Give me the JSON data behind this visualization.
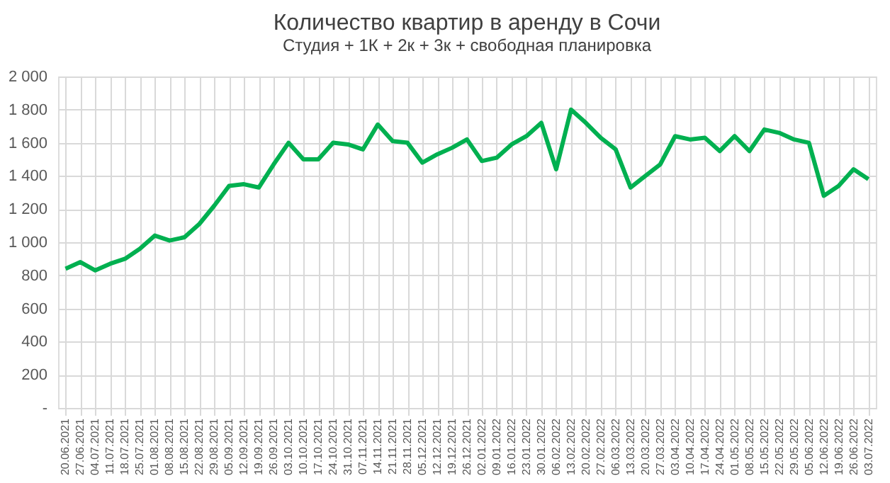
{
  "chart_data": {
    "type": "line",
    "title": "Количество квартир в аренду в Сочи",
    "subtitle": "Студия + 1К + 2к + 3к + свободная планировка",
    "categories": [
      "20.06.2021",
      "27.06.2021",
      "04.07.2021",
      "11.07.2021",
      "18.07.2021",
      "25.07.2021",
      "01.08.2021",
      "08.08.2021",
      "15.08.2021",
      "22.08.2021",
      "29.08.2021",
      "05.09.2021",
      "12.09.2021",
      "19.09.2021",
      "26.09.2021",
      "03.10.2021",
      "10.10.2021",
      "17.10.2021",
      "24.10.2021",
      "31.10.2021",
      "07.11.2021",
      "14.11.2021",
      "21.11.2021",
      "28.11.2021",
      "05.12.2021",
      "12.12.2021",
      "19.12.2021",
      "26.12.2021",
      "02.01.2022",
      "09.01.2022",
      "16.01.2022",
      "23.01.2022",
      "30.01.2022",
      "06.02.2022",
      "13.02.2022",
      "20.02.2022",
      "27.02.2022",
      "06.03.2022",
      "13.03.2022",
      "20.03.2022",
      "27.03.2022",
      "03.04.2022",
      "10.04.2022",
      "17.04.2022",
      "24.04.2022",
      "01.05.2022",
      "08.05.2022",
      "15.05.2022",
      "22.05.2022",
      "29.05.2022",
      "05.06.2022",
      "12.06.2022",
      "19.06.2022",
      "26.06.2022",
      "03.07.2022"
    ],
    "series": [
      {
        "color": "#00b050",
        "values": [
          840,
          880,
          830,
          870,
          900,
          960,
          1040,
          1010,
          1030,
          1110,
          1220,
          1340,
          1350,
          1330,
          1470,
          1600,
          1500,
          1500,
          1600,
          1590,
          1560,
          1710,
          1610,
          1600,
          1480,
          1530,
          1570,
          1620,
          1490,
          1510,
          1590,
          1640,
          1720,
          1440,
          1800,
          1720,
          1630,
          1560,
          1330,
          1400,
          1470,
          1640,
          1620,
          1630,
          1550,
          1640,
          1550,
          1680,
          1660,
          1620,
          1600,
          1280,
          1340,
          1440,
          1380
        ]
      }
    ],
    "ylim": [
      0,
      2000
    ],
    "yticks": [
      {
        "value": 0,
        "label": "-"
      },
      {
        "value": 200,
        "label": "200"
      },
      {
        "value": 400,
        "label": "400"
      },
      {
        "value": 600,
        "label": "600"
      },
      {
        "value": 800,
        "label": "800"
      },
      {
        "value": 1000,
        "label": "1 000"
      },
      {
        "value": 1200,
        "label": "1 200"
      },
      {
        "value": 1400,
        "label": "1 400"
      },
      {
        "value": 1600,
        "label": "1 600"
      },
      {
        "value": 1800,
        "label": "1 800"
      },
      {
        "value": 2000,
        "label": "2 000"
      }
    ],
    "grid": true,
    "marker": "none",
    "line_style": "solid"
  }
}
